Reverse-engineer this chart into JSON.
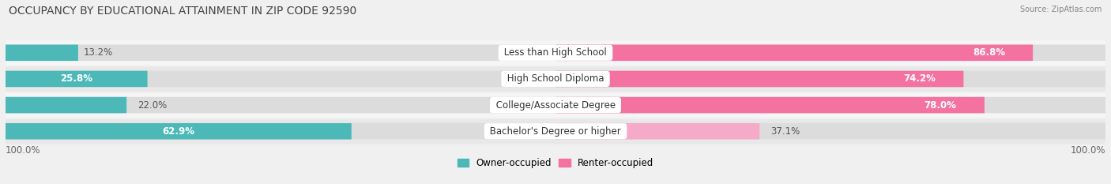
{
  "title": "OCCUPANCY BY EDUCATIONAL ATTAINMENT IN ZIP CODE 92590",
  "source": "Source: ZipAtlas.com",
  "categories": [
    "Less than High School",
    "High School Diploma",
    "College/Associate Degree",
    "Bachelor's Degree or higher"
  ],
  "owner_values": [
    13.2,
    25.8,
    22.0,
    62.9
  ],
  "renter_values": [
    86.8,
    74.2,
    78.0,
    37.1
  ],
  "owner_color": "#4db8b8",
  "renter_color": "#f472a0",
  "renter_color_light": "#f5aac8",
  "bg_color": "#f0f0f0",
  "bar_bg_color": "#dcdcdc",
  "row_bg_even": "#f5f5f5",
  "row_bg_odd": "#e8e8e8",
  "title_fontsize": 10,
  "label_fontsize": 8.5,
  "pct_fontsize": 8.5,
  "axis_label_fontsize": 8.5,
  "legend_fontsize": 8.5,
  "x_left_label": "100.0%",
  "x_right_label": "100.0%"
}
